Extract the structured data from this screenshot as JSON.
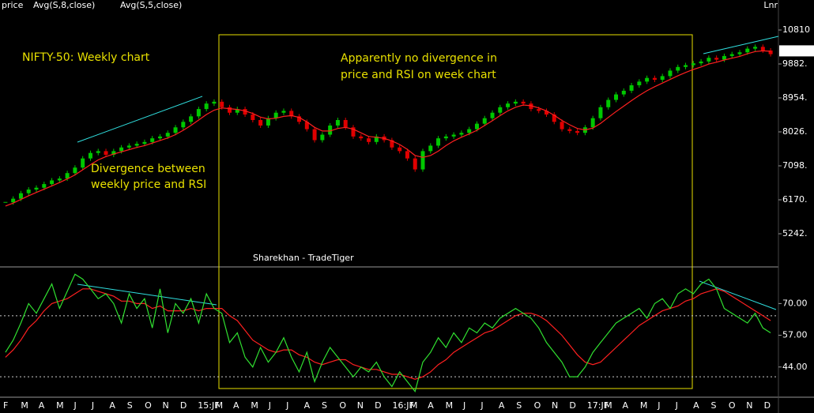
{
  "chart_data": {
    "type": "candlestick",
    "legend": [
      {
        "name": "price",
        "color": "#00e000"
      },
      {
        "name": "Avg(S,8,close)",
        "color": "#ff2020"
      },
      {
        "name": "Avg(S,5,close)",
        "color": "#3030ff"
      }
    ],
    "scale_label": "Lnr",
    "title": "NIFTY-50: Weekly chart",
    "annotations": [
      {
        "lines": [
          "Divergence between",
          "weekly price and RSI"
        ]
      },
      {
        "lines": [
          "Apparently no divergence in",
          "price and RSI on week chart"
        ]
      }
    ],
    "watermark": "Sharekhan - TradeTiger",
    "up_color": "#00c800",
    "down_color": "#e00000",
    "ma_color": "#ff2020",
    "x_labels": [
      "F",
      "M",
      "A",
      "M",
      "J",
      "J",
      "A",
      "S",
      "O",
      "N",
      "D",
      "15:JF",
      "M",
      "A",
      "M",
      "J",
      "J",
      "A",
      "S",
      "O",
      "N",
      "D",
      "16:JF",
      "M",
      "A",
      "M",
      "J",
      "J",
      "A",
      "S",
      "O",
      "N",
      "D",
      "17:JF",
      "M",
      "A",
      "M",
      "J",
      "J",
      "A",
      "S",
      "O",
      "N",
      "D"
    ],
    "close": [
      6100,
      6200,
      6350,
      6450,
      6500,
      6600,
      6700,
      6750,
      6900,
      7050,
      7300,
      7450,
      7500,
      7400,
      7500,
      7600,
      7650,
      7700,
      7750,
      7850,
      7900,
      8000,
      8150,
      8300,
      8450,
      8650,
      8800,
      8850,
      8700,
      8550,
      8650,
      8500,
      8350,
      8200,
      8400,
      8550,
      8600,
      8450,
      8300,
      8100,
      7800,
      7950,
      8200,
      8350,
      8150,
      7900,
      7850,
      7750,
      7900,
      7800,
      7600,
      7500,
      7300,
      7000,
      7500,
      7650,
      7850,
      7900,
      7950,
      8000,
      8100,
      8250,
      8400,
      8550,
      8700,
      8800,
      8850,
      8800,
      8650,
      8600,
      8500,
      8300,
      8100,
      8050,
      8000,
      8150,
      8400,
      8700,
      8900,
      9050,
      9150,
      9300,
      9400,
      9500,
      9450,
      9550,
      9700,
      9800,
      9850,
      9900,
      9950,
      10050,
      10000,
      10100,
      10150,
      10200,
      10300,
      10350,
      10250,
      10150
    ],
    "ma": [
      6000,
      6080,
      6180,
      6280,
      6370,
      6460,
      6550,
      6640,
      6740,
      6850,
      6990,
      7130,
      7260,
      7350,
      7420,
      7480,
      7540,
      7600,
      7650,
      7720,
      7790,
      7860,
      7950,
      8070,
      8200,
      8350,
      8500,
      8620,
      8680,
      8660,
      8640,
      8600,
      8530,
      8430,
      8380,
      8400,
      8450,
      8470,
      8420,
      8300,
      8150,
      8050,
      8050,
      8120,
      8150,
      8100,
      8000,
      7900,
      7880,
      7850,
      7780,
      7680,
      7550,
      7380,
      7330,
      7380,
      7500,
      7650,
      7780,
      7880,
      7970,
      8070,
      8200,
      8330,
      8470,
      8600,
      8700,
      8760,
      8740,
      8680,
      8600,
      8480,
      8340,
      8220,
      8120,
      8080,
      8130,
      8260,
      8420,
      8580,
      8730,
      8880,
      9020,
      9150,
      9260,
      9360,
      9460,
      9560,
      9650,
      9730,
      9800,
      9880,
      9930,
      9990,
      10040,
      10090,
      10160,
      10220,
      10240,
      10230
    ],
    "ylim": [
      4336,
      11630
    ],
    "yticks": [
      {
        "value": 5242,
        "label": "5242."
      },
      {
        "value": 6170,
        "label": "6170."
      },
      {
        "value": 7098,
        "label": "7098."
      },
      {
        "value": 8026,
        "label": "8026."
      },
      {
        "value": 8954,
        "label": "8954."
      },
      {
        "value": 9882,
        "label": "9882."
      },
      10810
    ],
    "last_price": 10240,
    "rsi_panel": {
      "rsi_color": "#30e030",
      "avg_color": "#ff2020",
      "rsi": [
        50,
        55,
        62,
        70,
        66,
        72,
        78,
        68,
        75,
        82,
        80,
        76,
        72,
        74,
        70,
        62,
        74,
        68,
        72,
        60,
        76,
        58,
        70,
        66,
        72,
        62,
        74,
        68,
        66,
        54,
        58,
        48,
        44,
        52,
        46,
        50,
        56,
        48,
        42,
        50,
        38,
        46,
        52,
        48,
        44,
        40,
        44,
        42,
        46,
        40,
        36,
        42,
        38,
        34,
        46,
        50,
        56,
        52,
        58,
        54,
        60,
        58,
        62,
        60,
        64,
        66,
        68,
        66,
        64,
        60,
        54,
        50,
        46,
        40,
        40,
        44,
        50,
        54,
        58,
        62,
        64,
        66,
        68,
        64,
        70,
        72,
        68,
        74,
        76,
        74,
        78,
        80,
        76,
        68,
        66,
        64,
        62,
        66,
        60,
        58
      ],
      "rsi_avg": [
        48,
        51,
        55,
        60,
        63,
        67,
        70,
        71,
        72,
        74,
        76,
        76,
        75,
        74,
        73,
        71,
        71,
        70,
        70,
        68,
        69,
        67,
        67,
        67,
        68,
        67,
        68,
        68,
        68,
        65,
        63,
        59,
        55,
        53,
        51,
        50,
        51,
        51,
        49,
        48,
        46,
        45,
        46,
        47,
        47,
        45,
        44,
        43,
        43,
        42,
        41,
        41,
        40,
        39,
        40,
        42,
        45,
        47,
        50,
        52,
        54,
        56,
        58,
        59,
        61,
        63,
        65,
        66,
        66,
        65,
        63,
        60,
        57,
        53,
        49,
        46,
        45,
        46,
        49,
        52,
        55,
        58,
        61,
        63,
        65,
        67,
        68,
        69,
        71,
        72,
        74,
        75,
        76,
        75,
        73,
        71,
        69,
        67,
        65,
        63
      ],
      "ylim": [
        32.6,
        85
      ],
      "yticks": [
        {
          "value": 44,
          "label": "44.00"
        },
        {
          "value": 57,
          "label": "57.00"
        },
        {
          "value": 70,
          "label": "70.00"
        }
      ],
      "ref_lines": [
        65,
        40
      ]
    }
  }
}
